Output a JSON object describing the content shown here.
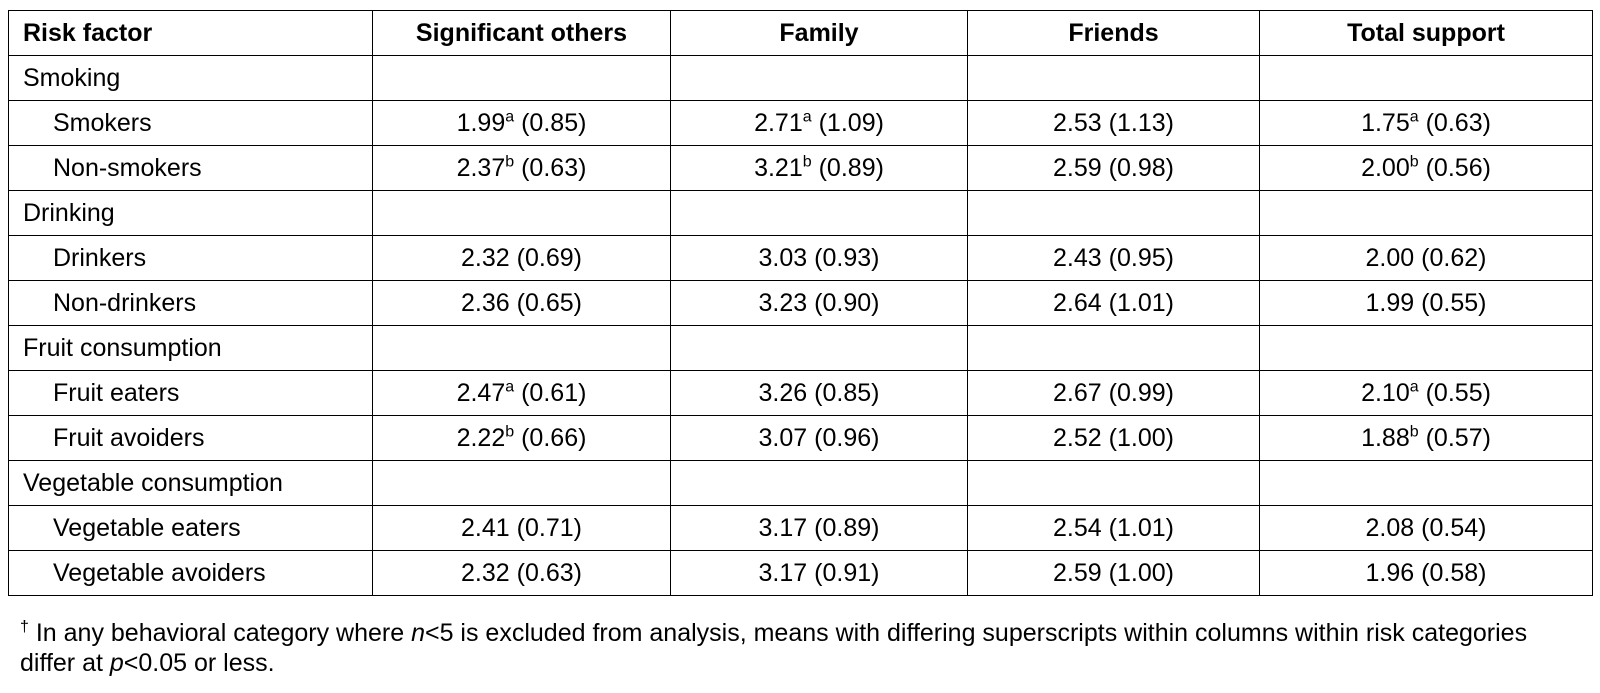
{
  "headers": [
    "Risk factor",
    "Significant others",
    "Family",
    "Friends",
    "Total support"
  ],
  "groups": [
    {
      "name": "Smoking",
      "rows": [
        {
          "label": "Smokers",
          "cells": [
            {
              "mean": "1.99",
              "sup": "a",
              "sd": "(0.85)"
            },
            {
              "mean": "2.71",
              "sup": "a",
              "sd": "(1.09)"
            },
            {
              "mean": "2.53",
              "sup": "",
              "sd": "(1.13)"
            },
            {
              "mean": "1.75",
              "sup": "a",
              "sd": "(0.63)"
            }
          ]
        },
        {
          "label": "Non-smokers",
          "cells": [
            {
              "mean": "2.37",
              "sup": "b",
              "sd": "(0.63)"
            },
            {
              "mean": "3.21",
              "sup": "b",
              "sd": "(0.89)"
            },
            {
              "mean": "2.59",
              "sup": "",
              "sd": "(0.98)"
            },
            {
              "mean": "2.00",
              "sup": "b",
              "sd": "(0.56)"
            }
          ]
        }
      ]
    },
    {
      "name": "Drinking",
      "rows": [
        {
          "label": "Drinkers",
          "cells": [
            {
              "mean": "2.32",
              "sup": "",
              "sd": "(0.69)"
            },
            {
              "mean": "3.03",
              "sup": "",
              "sd": "(0.93)"
            },
            {
              "mean": "2.43",
              "sup": "",
              "sd": "(0.95)"
            },
            {
              "mean": "2.00",
              "sup": "",
              "sd": "(0.62)"
            }
          ]
        },
        {
          "label": "Non-drinkers",
          "cells": [
            {
              "mean": "2.36",
              "sup": "",
              "sd": "(0.65)"
            },
            {
              "mean": "3.23",
              "sup": "",
              "sd": "(0.90)"
            },
            {
              "mean": "2.64",
              "sup": "",
              "sd": "(1.01)"
            },
            {
              "mean": "1.99",
              "sup": "",
              "sd": "(0.55)"
            }
          ]
        }
      ]
    },
    {
      "name": "Fruit consumption",
      "rows": [
        {
          "label": "Fruit eaters",
          "cells": [
            {
              "mean": "2.47",
              "sup": "a",
              "sd": "(0.61)"
            },
            {
              "mean": "3.26",
              "sup": "",
              "sd": "(0.85)"
            },
            {
              "mean": "2.67",
              "sup": "",
              "sd": "(0.99)"
            },
            {
              "mean": "2.10",
              "sup": "a",
              "sd": "(0.55)"
            }
          ]
        },
        {
          "label": "Fruit avoiders",
          "cells": [
            {
              "mean": "2.22",
              "sup": "b",
              "sd": "(0.66)"
            },
            {
              "mean": "3.07",
              "sup": "",
              "sd": "(0.96)"
            },
            {
              "mean": "2.52",
              "sup": "",
              "sd": "(1.00)"
            },
            {
              "mean": "1.88",
              "sup": "b",
              "sd": "(0.57)"
            }
          ]
        }
      ]
    },
    {
      "name": "Vegetable consumption",
      "rows": [
        {
          "label": "Vegetable eaters",
          "cells": [
            {
              "mean": "2.41",
              "sup": "",
              "sd": "(0.71)"
            },
            {
              "mean": "3.17",
              "sup": "",
              "sd": "(0.89)"
            },
            {
              "mean": "2.54",
              "sup": "",
              "sd": "(1.01)"
            },
            {
              "mean": "2.08",
              "sup": "",
              "sd": "(0.54)"
            }
          ]
        },
        {
          "label": "Vegetable avoiders",
          "cells": [
            {
              "mean": "2.32",
              "sup": "",
              "sd": "(0.63)"
            },
            {
              "mean": "3.17",
              "sup": "",
              "sd": "(0.91)"
            },
            {
              "mean": "2.59",
              "sup": "",
              "sd": "(1.00)"
            },
            {
              "mean": "1.96",
              "sup": "",
              "sd": "(0.58)"
            }
          ]
        }
      ]
    }
  ],
  "footnote": {
    "marker": "†",
    "part1": " In any behavioral category where ",
    "n": "n",
    "part2": "<5 is excluded from analysis, means with differing superscripts within columns within risk categories differ at ",
    "p": "p",
    "part3": "<0.05 or less."
  }
}
